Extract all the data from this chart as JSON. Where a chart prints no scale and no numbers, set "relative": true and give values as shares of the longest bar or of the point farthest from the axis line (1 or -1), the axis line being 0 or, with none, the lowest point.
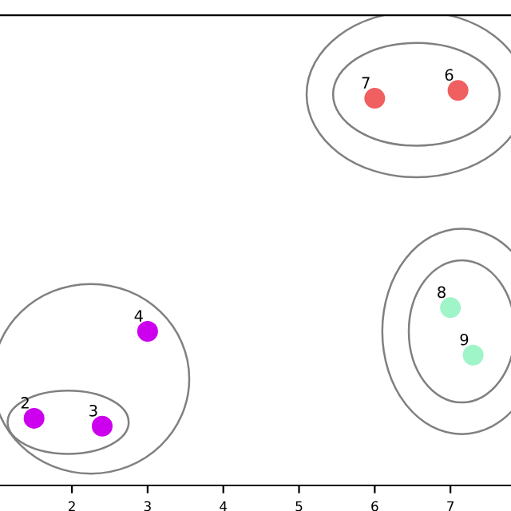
{
  "chart_data": {
    "type": "scatter",
    "relative": true,
    "marker": "circle",
    "xlim": [
      1.05,
      7.8
    ],
    "xticks": [
      2,
      3,
      4,
      5,
      6,
      7
    ],
    "tick_labels": "x",
    "grid": false,
    "legend": false,
    "series": [
      {
        "color": "#cc00ee",
        "x": [
          1.5,
          2.4,
          3.0
        ],
        "values": [
          0.17,
          0.15,
          0.39
        ]
      },
      {
        "color": "#f06060",
        "x": [
          7.1,
          6.0
        ],
        "values": [
          1,
          0.98
        ]
      },
      {
        "color": "#a0f5c8",
        "x": [
          7.0,
          7.3
        ],
        "values": [
          0.45,
          0.33
        ]
      }
    ],
    "annotations": [
      {
        "text": "2",
        "x": 1.5,
        "y": 0.17
      },
      {
        "text": "3",
        "x": 2.4,
        "y": 0.15
      },
      {
        "text": "4",
        "x": 3.0,
        "y": 0.39
      },
      {
        "text": "6",
        "x": 7.1,
        "y": 1
      },
      {
        "text": "7",
        "x": 6.0,
        "y": 0.98
      },
      {
        "text": "8",
        "x": 7.0,
        "y": 0.45
      },
      {
        "text": "9",
        "x": 7.3,
        "y": 0.33
      }
    ]
  }
}
